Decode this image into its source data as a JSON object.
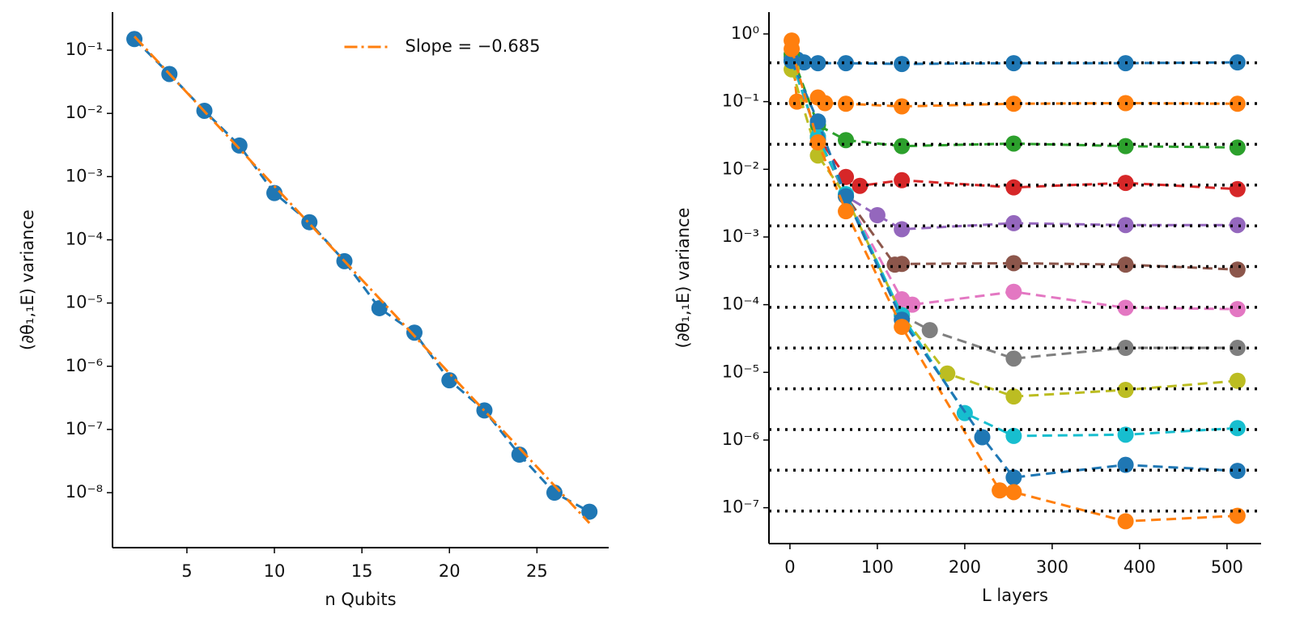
{
  "chart_data": [
    {
      "type": "line",
      "xlabel": "n Qubits",
      "ylabel": "(∂θ₁,₁E) variance",
      "log_y": true,
      "xlim": [
        0.75,
        29.1
      ],
      "ylim": [
        1.35e-09,
        0.4
      ],
      "xticks": [
        5,
        10,
        15,
        20,
        25
      ],
      "yticks": [
        {
          "value": 0.1,
          "label": "10⁻¹"
        },
        {
          "value": 0.01,
          "label": "10⁻²"
        },
        {
          "value": 0.001,
          "label": "10⁻³"
        },
        {
          "value": 0.0001,
          "label": "10⁻⁴"
        },
        {
          "value": 1e-05,
          "label": "10⁻⁵"
        },
        {
          "value": 1e-06,
          "label": "10⁻⁶"
        },
        {
          "value": 1e-07,
          "label": "10⁻⁷"
        },
        {
          "value": 1e-08,
          "label": "10⁻⁸"
        }
      ],
      "legend": "upper center",
      "series": [
        {
          "color": "#1f77b4",
          "style": "dashed",
          "markers": true,
          "x": [
            2,
            4,
            6,
            8,
            10,
            12,
            14,
            16,
            18,
            20,
            22,
            24,
            26,
            28
          ],
          "values": [
            0.15,
            0.042,
            0.011,
            0.0031,
            0.00055,
            0.00019,
            4.6e-05,
            8.3e-06,
            3.4e-06,
            6e-07,
            2e-07,
            4e-08,
            1e-08,
            5e-09
          ]
        },
        {
          "name": "Slope = −0.685",
          "color": "#ff7f0e",
          "style": "dashdot",
          "markers": false,
          "x": [
            2,
            28
          ],
          "values": [
            0.165,
            3.3e-09
          ]
        }
      ]
    },
    {
      "type": "line",
      "xlabel": "L layers",
      "ylabel": "(∂θ₁,₁E) variance",
      "log_y": true,
      "xlim": [
        -24,
        539
      ],
      "ylim": [
        2.95e-08,
        2.1
      ],
      "xticks": [
        0,
        100,
        200,
        300,
        400,
        500
      ],
      "yticks": [
        {
          "value": 1,
          "label": "10⁰"
        },
        {
          "value": 0.1,
          "label": "10⁻¹"
        },
        {
          "value": 0.01,
          "label": "10⁻²"
        },
        {
          "value": 0.001,
          "label": "10⁻³"
        },
        {
          "value": 0.0001,
          "label": "10⁻⁴"
        },
        {
          "value": 1e-05,
          "label": "10⁻⁵"
        },
        {
          "value": 1e-06,
          "label": "10⁻⁶"
        },
        {
          "value": 1e-07,
          "label": "10⁻⁷"
        }
      ],
      "reference_lines": {
        "color": "#000000",
        "values": [
          0.375,
          0.0938,
          0.0234,
          0.00586,
          0.00146,
          0.000366,
          9.16e-05,
          2.29e-05,
          5.72e-06,
          1.43e-06,
          3.58e-07,
          8.94e-08
        ]
      },
      "series": [
        {
          "color": "#1f77b4",
          "style": "dashed",
          "markers": true,
          "x": [
            2,
            8,
            16,
            32,
            64,
            128,
            256,
            384,
            512
          ],
          "values": [
            0.45,
            0.42,
            0.38,
            0.37,
            0.37,
            0.36,
            0.37,
            0.37,
            0.38
          ]
        },
        {
          "color": "#ff7f0e",
          "style": "dashed",
          "markers": true,
          "x": [
            2,
            8,
            32,
            40,
            64,
            128,
            256,
            384,
            512
          ],
          "values": [
            0.8,
            0.1,
            0.115,
            0.095,
            0.093,
            0.085,
            0.093,
            0.095,
            0.093
          ]
        },
        {
          "color": "#2ca02c",
          "style": "dashed",
          "markers": true,
          "x": [
            2,
            32,
            64,
            128,
            256,
            384,
            512
          ],
          "values": [
            0.5,
            0.045,
            0.027,
            0.022,
            0.024,
            0.022,
            0.021
          ]
        },
        {
          "color": "#d62728",
          "style": "dashed",
          "markers": true,
          "x": [
            2,
            32,
            64,
            80,
            128,
            256,
            384,
            512
          ],
          "values": [
            0.4,
            0.03,
            0.0077,
            0.0057,
            0.0069,
            0.0054,
            0.0063,
            0.0051
          ]
        },
        {
          "color": "#9467bd",
          "style": "dashed",
          "markers": true,
          "x": [
            2,
            32,
            64,
            100,
            128,
            256,
            384,
            512
          ],
          "values": [
            0.4,
            0.03,
            0.004,
            0.0021,
            0.0013,
            0.0016,
            0.0015,
            0.0015
          ]
        },
        {
          "color": "#8c564b",
          "style": "dashed",
          "markers": true,
          "x": [
            2,
            32,
            64,
            120,
            128,
            256,
            384,
            512
          ],
          "values": [
            0.4,
            0.03,
            0.004,
            0.00039,
            0.0004,
            0.00041,
            0.00039,
            0.00033
          ]
        },
        {
          "color": "#e377c2",
          "style": "dashed",
          "markers": true,
          "x": [
            2,
            32,
            64,
            128,
            140,
            256,
            384,
            512
          ],
          "values": [
            0.4,
            0.03,
            0.004,
            0.00012,
            0.0001,
            0.000155,
            9e-05,
            8.6e-05
          ]
        },
        {
          "color": "#7f7f7f",
          "style": "dashed",
          "markers": true,
          "x": [
            2,
            32,
            64,
            128,
            160,
            256,
            384,
            512
          ],
          "values": [
            0.4,
            0.03,
            0.004,
            7e-05,
            4.2e-05,
            1.6e-05,
            2.3e-05,
            2.3e-05
          ]
        },
        {
          "color": "#bcbd22",
          "style": "dashed",
          "markers": true,
          "x": [
            2,
            32,
            64,
            128,
            180,
            256,
            384,
            512
          ],
          "values": [
            0.3,
            0.016,
            0.004,
            7e-05,
            9.6e-06,
            4.4e-06,
            5.5e-06,
            7.5e-06
          ]
        },
        {
          "color": "#17becf",
          "style": "dashed",
          "markers": true,
          "x": [
            2,
            32,
            64,
            128,
            200,
            256,
            384,
            512
          ],
          "values": [
            0.4,
            0.03,
            0.0043,
            7e-05,
            2.5e-06,
            1.15e-06,
            1.2e-06,
            1.5e-06
          ]
        },
        {
          "color": "#1f77b4",
          "style": "dashed",
          "markers": true,
          "x": [
            2,
            32,
            64,
            128,
            220,
            256,
            384,
            512
          ],
          "values": [
            0.4,
            0.051,
            0.004,
            6e-05,
            1.1e-06,
            2.8e-07,
            4.3e-07,
            3.5e-07
          ]
        },
        {
          "color": "#ff7f0e",
          "style": "dashed",
          "markers": true,
          "x": [
            2,
            32,
            64,
            128,
            240,
            256,
            384,
            512
          ],
          "values": [
            0.6,
            0.025,
            0.0024,
            4.7e-05,
            1.8e-07,
            1.7e-07,
            6.3e-08,
            7.6e-08
          ]
        }
      ]
    }
  ]
}
